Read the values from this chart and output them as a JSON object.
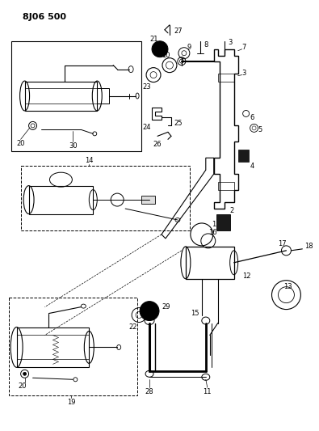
{
  "title": "8J06 500",
  "bg": "#ffffff",
  "lc": "#000000",
  "gray": "#888888",
  "fig_w": 3.95,
  "fig_h": 5.33,
  "dpi": 100
}
